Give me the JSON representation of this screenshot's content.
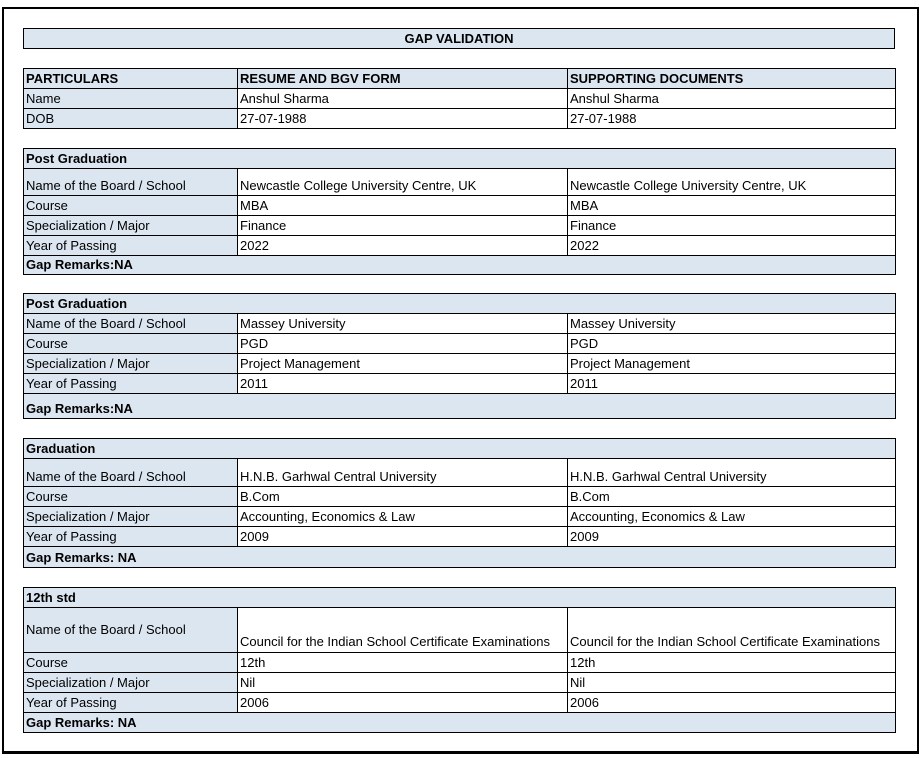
{
  "title": "GAP VALIDATION",
  "header": {
    "columns": [
      "PARTICULARS",
      "RESUME AND BGV FORM",
      "SUPPORTING DOCUMENTS"
    ],
    "rows": [
      {
        "label": "Name",
        "resume": "Anshul Sharma",
        "documents": "Anshul Sharma"
      },
      {
        "label": "DOB",
        "resume": "27-07-1988",
        "documents": "27-07-1988"
      }
    ]
  },
  "sections": [
    {
      "heading": "Post Graduation",
      "rows": [
        {
          "label": "Name of the Board / School",
          "resume": "Newcastle College University Centre, UK",
          "documents": "Newcastle College University Centre, UK"
        },
        {
          "label": "Course",
          "resume": "MBA",
          "documents": "MBA"
        },
        {
          "label": "Specialization / Major",
          "resume": "Finance",
          "documents": "Finance"
        },
        {
          "label": "Year of Passing",
          "resume": "2022",
          "documents": "2022"
        }
      ],
      "remarks": "Gap Remarks:NA"
    },
    {
      "heading": "Post Graduation",
      "rows": [
        {
          "label": "Name of the Board / School",
          "resume": "Massey University",
          "documents": "Massey University"
        },
        {
          "label": "Course",
          "resume": "PGD",
          "documents": "PGD"
        },
        {
          "label": "Specialization / Major",
          "resume": "Project Management",
          "documents": "Project Management"
        },
        {
          "label": "Year of Passing",
          "resume": "2011",
          "documents": "2011"
        }
      ],
      "remarks": "Gap Remarks:NA"
    },
    {
      "heading": "Graduation",
      "rows": [
        {
          "label": "Name of the Board / School",
          "resume": "H.N.B. Garhwal Central University",
          "documents": "H.N.B. Garhwal Central University"
        },
        {
          "label": "Course",
          "resume": "B.Com",
          "documents": "B.Com"
        },
        {
          "label": "Specialization / Major",
          "resume": "Accounting, Economics & Law",
          "documents": "Accounting, Economics & Law"
        },
        {
          "label": "Year of Passing",
          "resume": "2009",
          "documents": "2009"
        }
      ],
      "remarks": "Gap Remarks: NA"
    },
    {
      "heading": "12th std",
      "rows": [
        {
          "label": "Name of the Board / School",
          "resume": "Council for the Indian School Certificate Examinations",
          "documents": "Council for the Indian School Certificate Examinations"
        },
        {
          "label": "Course",
          "resume": "12th",
          "documents": "12th"
        },
        {
          "label": "Specialization / Major",
          "resume": "Nil",
          "documents": "Nil"
        },
        {
          "label": "Year of Passing",
          "resume": "2006",
          "documents": "2006"
        }
      ],
      "remarks": "Gap Remarks: NA"
    }
  ]
}
